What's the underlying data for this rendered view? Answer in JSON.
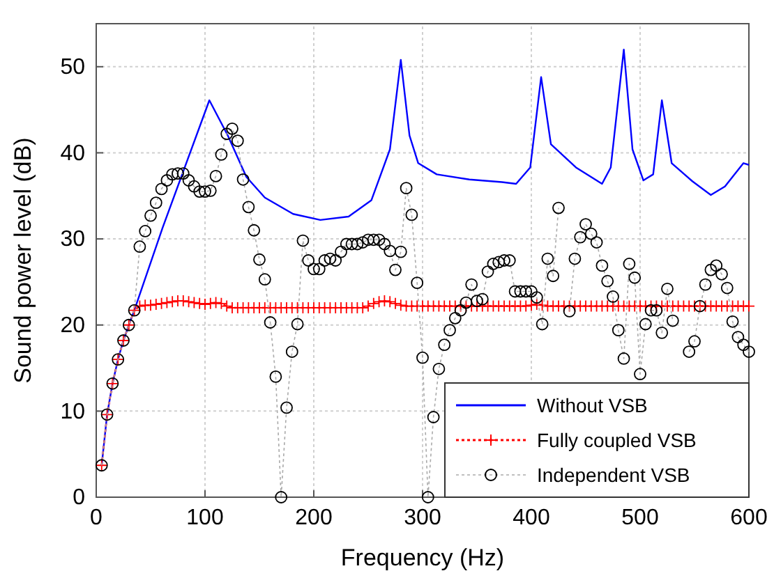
{
  "chart_data": {
    "type": "line",
    "xlabel": "Frequency (Hz)",
    "ylabel": "Sound power level (dB)",
    "xlim": [
      0,
      600
    ],
    "ylim": [
      0,
      55
    ],
    "xticks": [
      0,
      100,
      200,
      300,
      400,
      500,
      600
    ],
    "yticks": [
      0,
      10,
      20,
      30,
      40,
      50
    ],
    "grid": true,
    "legend": "bottom right",
    "series": [
      {
        "name": "Without VSB",
        "color": "#0000ff",
        "marker": "none",
        "line_style": "solid",
        "x": [
          5,
          10,
          15,
          20,
          25,
          30,
          35,
          61,
          104,
          121,
          138,
          155,
          181,
          206,
          232,
          253,
          270,
          280,
          288,
          296,
          313,
          343,
          373,
          386,
          399,
          409,
          418,
          441,
          465,
          473,
          485,
          493,
          503,
          512,
          520,
          529,
          548,
          565,
          578,
          595,
          600
        ],
        "values": [
          3.7,
          9.6,
          13.2,
          16,
          18.2,
          20,
          21.7,
          31.3,
          46.1,
          42,
          37.2,
          34.8,
          32.9,
          32.2,
          32.6,
          34.5,
          40.4,
          50.8,
          42,
          38.8,
          37.5,
          36.9,
          36.6,
          36.4,
          38.3,
          48.8,
          41,
          38.3,
          36.4,
          38.3,
          52,
          40.4,
          36.8,
          37.5,
          46.1,
          38.8,
          36.7,
          35.1,
          36.1,
          38.8,
          38.6
        ]
      },
      {
        "name": "Fully coupled VSB",
        "color": "#ff0000",
        "marker": "cross",
        "line_style": "dotted",
        "x": [
          5,
          10,
          15,
          20,
          25,
          30,
          35,
          40,
          45,
          50,
          55,
          60,
          65,
          70,
          75,
          80,
          85,
          90,
          95,
          100,
          105,
          110,
          115,
          120,
          125,
          130,
          135,
          140,
          145,
          150,
          155,
          160,
          165,
          170,
          175,
          180,
          185,
          190,
          195,
          200,
          205,
          210,
          215,
          220,
          225,
          230,
          235,
          240,
          245,
          250,
          255,
          260,
          265,
          270,
          275,
          280,
          285,
          290,
          295,
          300,
          305,
          310,
          315,
          320,
          325,
          330,
          335,
          340,
          345,
          350,
          355,
          360,
          365,
          370,
          375,
          380,
          385,
          390,
          395,
          400,
          405,
          410,
          415,
          420,
          425,
          430,
          435,
          440,
          445,
          450,
          455,
          460,
          465,
          470,
          475,
          480,
          485,
          490,
          495,
          500,
          505,
          510,
          515,
          520,
          525,
          530,
          535,
          540,
          545,
          550,
          555,
          560,
          565,
          570,
          575,
          580,
          585,
          590,
          595,
          600
        ],
        "values": [
          3.7,
          9.6,
          13.2,
          16,
          18.2,
          20,
          21.7,
          22.2,
          22.3,
          22.3,
          22.4,
          22.5,
          22.6,
          22.7,
          22.8,
          22.8,
          22.7,
          22.6,
          22.5,
          22.4,
          22.5,
          22.6,
          22.5,
          22.2,
          22,
          22,
          22,
          22,
          22,
          22,
          22,
          22,
          22,
          22,
          22,
          22,
          22,
          22,
          22,
          22,
          22,
          22,
          22,
          22,
          22,
          22,
          22,
          22,
          22,
          22.2,
          22.5,
          22.7,
          22.8,
          22.7,
          22.5,
          22.3,
          22.2,
          22.2,
          22.2,
          22.2,
          22.2,
          22.2,
          22.2,
          22.2,
          22.2,
          22.2,
          22.2,
          22.2,
          22.2,
          22.2,
          22.2,
          22.2,
          22.2,
          22.2,
          22.2,
          22.2,
          22.2,
          22.2,
          22.2,
          22.3,
          22.4,
          22.3,
          22.2,
          22.2,
          22.2,
          22.2,
          22.2,
          22.2,
          22.2,
          22.2,
          22.2,
          22.2,
          22.2,
          22.2,
          22.2,
          22.2,
          22.2,
          22.2,
          22.2,
          22.2,
          22.2,
          22.2,
          22.2,
          22.2,
          22.2,
          22.2,
          22.2,
          22.2,
          22.2,
          22.2,
          22.2,
          22.2,
          22.2,
          22.2,
          22.2,
          22.2,
          22.2,
          22.2,
          22.2,
          22.2
        ]
      },
      {
        "name": "Independent VSB",
        "color": "#000000",
        "marker": "circle",
        "line_style": "dotted",
        "x": [
          5,
          10,
          15,
          20,
          25,
          30,
          35,
          40,
          45,
          50,
          55,
          60,
          65,
          70,
          75,
          80,
          85,
          90,
          95,
          100,
          105,
          110,
          115,
          120,
          125,
          130,
          135,
          140,
          145,
          150,
          155,
          160,
          165,
          170,
          175,
          180,
          185,
          190,
          195,
          200,
          205,
          210,
          215,
          220,
          225,
          230,
          235,
          240,
          245,
          250,
          255,
          260,
          265,
          270,
          275,
          280,
          285,
          290,
          295,
          300,
          305,
          310,
          315,
          320,
          325,
          330,
          335,
          340,
          345,
          350,
          355,
          360,
          365,
          370,
          375,
          380,
          385,
          390,
          395,
          400,
          405,
          410,
          415,
          420,
          425,
          430,
          435,
          440,
          445,
          450,
          455,
          460,
          465,
          470,
          475,
          480,
          485,
          490,
          495,
          500,
          505,
          510,
          515,
          520,
          525,
          530,
          535,
          540,
          545,
          550,
          555,
          560,
          565,
          570,
          575,
          580,
          585,
          590,
          595,
          600
        ],
        "values": [
          3.7,
          9.6,
          13.2,
          16,
          18.2,
          20,
          21.7,
          29.1,
          30.9,
          32.7,
          34.2,
          35.8,
          36.8,
          37.5,
          37.6,
          37.6,
          36.8,
          36.1,
          35.5,
          35.5,
          35.6,
          37.3,
          39.8,
          42.2,
          42.8,
          41.4,
          36.9,
          33.7,
          31,
          27.6,
          25.3,
          20.3,
          14,
          0,
          10.4,
          16.9,
          20.1,
          29.8,
          27.5,
          26.5,
          26.5,
          27.5,
          27.7,
          27.5,
          28.5,
          29.4,
          29.4,
          29.4,
          29.6,
          29.9,
          29.9,
          29.9,
          29.4,
          28.6,
          26.4,
          28.5,
          35.9,
          32.8,
          24.9,
          16.2,
          0,
          9.3,
          14.9,
          17.7,
          19.4,
          20.8,
          21.7,
          22.6,
          24.7,
          22.8,
          23,
          26.2,
          27.1,
          27.3,
          27.5,
          27.5,
          23.9,
          23.9,
          23.9,
          23.9,
          23.2,
          20.1,
          27.7,
          25.7,
          33.6,
          null,
          21.6,
          27.7,
          30.2,
          31.7,
          30.6,
          29.6,
          26.9,
          25.1,
          23.3,
          19.4,
          16.1,
          27.1,
          25.5,
          14.3,
          20.1,
          21.7,
          21.7,
          19.1,
          24.2,
          20.5,
          null,
          null,
          16.9,
          18.1,
          22.2,
          24.7,
          26.4,
          26.9,
          25.9,
          24.3,
          20.4,
          18.6,
          17.7,
          16.9
        ]
      }
    ]
  }
}
